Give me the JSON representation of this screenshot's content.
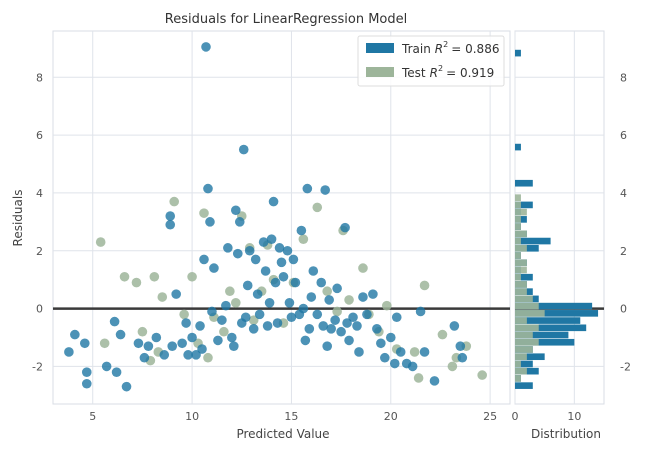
{
  "chart_data": {
    "type": "scatter",
    "title": "Residuals for LinearRegression Model",
    "xlabel": "Predicted Value",
    "ylabel": "Residuals",
    "xlim": [
      3,
      26
    ],
    "ylim": [
      -3.3,
      9.6
    ],
    "xticks": [
      5,
      10,
      15,
      20,
      25
    ],
    "yticks": [
      -2,
      0,
      2,
      4,
      6,
      8
    ],
    "grid": true,
    "legend_placement": "top-right",
    "reference_line_y": 0,
    "series": [
      {
        "name": "Train",
        "legend_label": "Train",
        "r2_text": "= 0.886",
        "color": "#1f77a4",
        "points": [
          [
            3.8,
            -1.5
          ],
          [
            4.1,
            -0.9
          ],
          [
            4.6,
            -1.2
          ],
          [
            4.7,
            -2.6
          ],
          [
            4.7,
            -2.2
          ],
          [
            5.7,
            -2.0
          ],
          [
            6.1,
            -0.45
          ],
          [
            6.4,
            -0.9
          ],
          [
            6.2,
            -2.2
          ],
          [
            6.7,
            -2.7
          ],
          [
            7.3,
            -1.2
          ],
          [
            7.8,
            -1.3
          ],
          [
            7.6,
            -1.7
          ],
          [
            8.2,
            -1.0
          ],
          [
            8.6,
            -1.6
          ],
          [
            8.9,
            3.2
          ],
          [
            8.9,
            2.9
          ],
          [
            9.0,
            -1.3
          ],
          [
            9.2,
            0.5
          ],
          [
            9.5,
            -1.2
          ],
          [
            9.7,
            -0.5
          ],
          [
            9.8,
            -1.6
          ],
          [
            10.0,
            -1.0
          ],
          [
            10.2,
            -1.6
          ],
          [
            10.4,
            -0.6
          ],
          [
            10.5,
            -1.4
          ],
          [
            10.6,
            1.7
          ],
          [
            10.7,
            9.05
          ],
          [
            10.8,
            4.15
          ],
          [
            10.9,
            3.0
          ],
          [
            11.0,
            -0.1
          ],
          [
            11.1,
            1.4
          ],
          [
            11.3,
            -1.1
          ],
          [
            11.5,
            -0.4
          ],
          [
            11.7,
            0.1
          ],
          [
            11.8,
            2.1
          ],
          [
            12.0,
            -1.0
          ],
          [
            12.1,
            -1.3
          ],
          [
            12.2,
            3.4
          ],
          [
            12.3,
            1.9
          ],
          [
            12.4,
            3.0
          ],
          [
            12.5,
            -0.5
          ],
          [
            12.6,
            5.5
          ],
          [
            12.7,
            -0.3
          ],
          [
            12.8,
            0.8
          ],
          [
            12.9,
            2.0
          ],
          [
            13.1,
            -0.7
          ],
          [
            13.2,
            1.7
          ],
          [
            13.3,
            0.5
          ],
          [
            13.4,
            -0.2
          ],
          [
            13.6,
            2.3
          ],
          [
            13.7,
            1.3
          ],
          [
            13.8,
            -0.6
          ],
          [
            13.9,
            0.2
          ],
          [
            14.0,
            2.4
          ],
          [
            14.1,
            3.7
          ],
          [
            14.2,
            0.9
          ],
          [
            14.3,
            -0.5
          ],
          [
            14.4,
            2.1
          ],
          [
            14.5,
            1.6
          ],
          [
            14.6,
            1.1
          ],
          [
            14.8,
            2.0
          ],
          [
            14.9,
            0.2
          ],
          [
            15.0,
            -0.3
          ],
          [
            15.1,
            1.7
          ],
          [
            15.2,
            0.9
          ],
          [
            15.4,
            -0.2
          ],
          [
            15.5,
            2.7
          ],
          [
            15.6,
            0.0
          ],
          [
            15.7,
            -1.1
          ],
          [
            15.8,
            4.15
          ],
          [
            15.9,
            -0.7
          ],
          [
            16.0,
            0.4
          ],
          [
            16.1,
            1.3
          ],
          [
            16.3,
            -0.2
          ],
          [
            16.5,
            0.9
          ],
          [
            16.6,
            -0.6
          ],
          [
            16.7,
            4.1
          ],
          [
            16.8,
            -1.3
          ],
          [
            16.9,
            0.3
          ],
          [
            17.0,
            -0.7
          ],
          [
            17.2,
            -0.4
          ],
          [
            17.3,
            0.7
          ],
          [
            17.5,
            -0.8
          ],
          [
            17.7,
            2.8
          ],
          [
            17.8,
            -0.5
          ],
          [
            17.9,
            -1.1
          ],
          [
            18.1,
            -0.3
          ],
          [
            18.3,
            -0.6
          ],
          [
            18.4,
            -1.5
          ],
          [
            18.6,
            0.4
          ],
          [
            18.8,
            -0.2
          ],
          [
            19.1,
            0.5
          ],
          [
            19.3,
            -0.7
          ],
          [
            19.5,
            -1.2
          ],
          [
            19.7,
            -1.7
          ],
          [
            20.0,
            -1.0
          ],
          [
            20.2,
            -1.9
          ],
          [
            20.3,
            -0.3
          ],
          [
            20.5,
            -1.5
          ],
          [
            20.8,
            -1.9
          ],
          [
            21.1,
            -2.0
          ],
          [
            21.5,
            -0.1
          ],
          [
            21.7,
            -1.5
          ],
          [
            22.2,
            -2.5
          ],
          [
            23.2,
            -0.6
          ],
          [
            23.5,
            -1.3
          ],
          [
            23.6,
            -1.7
          ]
        ]
      },
      {
        "name": "Test",
        "legend_label": "Test",
        "r2_text": "= 0.919",
        "color": "#9db59a",
        "points": [
          [
            5.4,
            2.3
          ],
          [
            5.6,
            -1.2
          ],
          [
            6.6,
            1.1
          ],
          [
            7.2,
            0.9
          ],
          [
            7.5,
            -0.8
          ],
          [
            7.9,
            -1.8
          ],
          [
            8.1,
            1.1
          ],
          [
            8.3,
            -1.5
          ],
          [
            8.5,
            0.4
          ],
          [
            9.1,
            3.7
          ],
          [
            9.6,
            -0.2
          ],
          [
            10.0,
            1.1
          ],
          [
            10.3,
            -1.2
          ],
          [
            10.6,
            3.3
          ],
          [
            10.8,
            -1.7
          ],
          [
            11.1,
            -0.3
          ],
          [
            11.6,
            -0.8
          ],
          [
            11.9,
            0.6
          ],
          [
            12.2,
            0.2
          ],
          [
            12.5,
            3.2
          ],
          [
            12.9,
            2.1
          ],
          [
            13.1,
            -0.4
          ],
          [
            13.5,
            0.6
          ],
          [
            13.8,
            2.2
          ],
          [
            14.1,
            1.0
          ],
          [
            14.6,
            -0.5
          ],
          [
            15.1,
            0.9
          ],
          [
            15.6,
            2.4
          ],
          [
            16.3,
            3.5
          ],
          [
            16.8,
            0.6
          ],
          [
            17.3,
            -0.1
          ],
          [
            17.6,
            2.7
          ],
          [
            17.9,
            0.3
          ],
          [
            18.6,
            1.4
          ],
          [
            18.9,
            -0.2
          ],
          [
            19.4,
            -0.8
          ],
          [
            19.8,
            0.1
          ],
          [
            20.3,
            -1.4
          ],
          [
            21.2,
            -1.5
          ],
          [
            21.4,
            -2.4
          ],
          [
            21.7,
            0.8
          ],
          [
            22.6,
            -0.9
          ],
          [
            23.1,
            -2.0
          ],
          [
            23.3,
            -1.7
          ],
          [
            23.8,
            -1.3
          ],
          [
            24.6,
            -2.3
          ]
        ]
      }
    ],
    "distribution": {
      "xlabel": "Distribution",
      "xlim": [
        0,
        15
      ],
      "xticks": [
        0,
        10
      ],
      "bins": [
        -2.8,
        -2.55,
        -2.3,
        -2.05,
        -1.8,
        -1.55,
        -1.3,
        -1.05,
        -0.8,
        -0.55,
        -0.3,
        -0.05,
        0.2,
        0.45,
        0.7,
        0.95,
        1.2,
        1.45,
        1.7,
        1.95,
        2.2,
        2.45,
        2.7,
        2.95,
        3.2,
        3.45,
        3.7,
        3.95,
        4.2,
        4.45,
        4.7,
        4.95,
        5.2,
        5.45,
        5.7,
        5.95,
        6.2,
        6.45,
        6.7,
        6.95,
        7.2,
        7.45,
        7.7,
        7.95,
        8.2,
        8.45,
        8.7,
        8.95,
        9.2
      ],
      "train_counts": [
        3,
        1,
        4,
        3,
        5,
        3,
        10,
        9,
        12,
        11,
        14,
        13,
        4,
        3,
        2,
        3,
        1,
        2,
        1,
        4,
        6,
        2,
        1,
        2,
        1,
        3,
        0,
        0,
        3,
        0,
        0,
        0,
        0,
        1,
        0,
        0,
        0,
        0,
        0,
        0,
        0,
        0,
        0,
        0,
        0,
        0,
        1,
        0
      ],
      "test_counts": [
        0,
        1,
        2,
        1,
        2,
        3,
        4,
        3,
        4,
        2,
        5,
        4,
        3,
        2,
        2,
        1,
        2,
        2,
        1,
        2,
        1,
        2,
        1,
        1,
        2,
        1,
        1,
        0,
        0,
        0,
        0,
        0,
        0,
        0,
        0,
        0,
        0,
        0,
        0,
        0,
        0,
        0,
        0,
        0,
        0,
        0,
        0,
        0
      ]
    }
  },
  "legend": {
    "train_label": "Train",
    "train_value": "= 0.886",
    "test_label": "Test",
    "test_value": "= 0.919",
    "r_symbol": "R",
    "r_exponent": "2"
  }
}
